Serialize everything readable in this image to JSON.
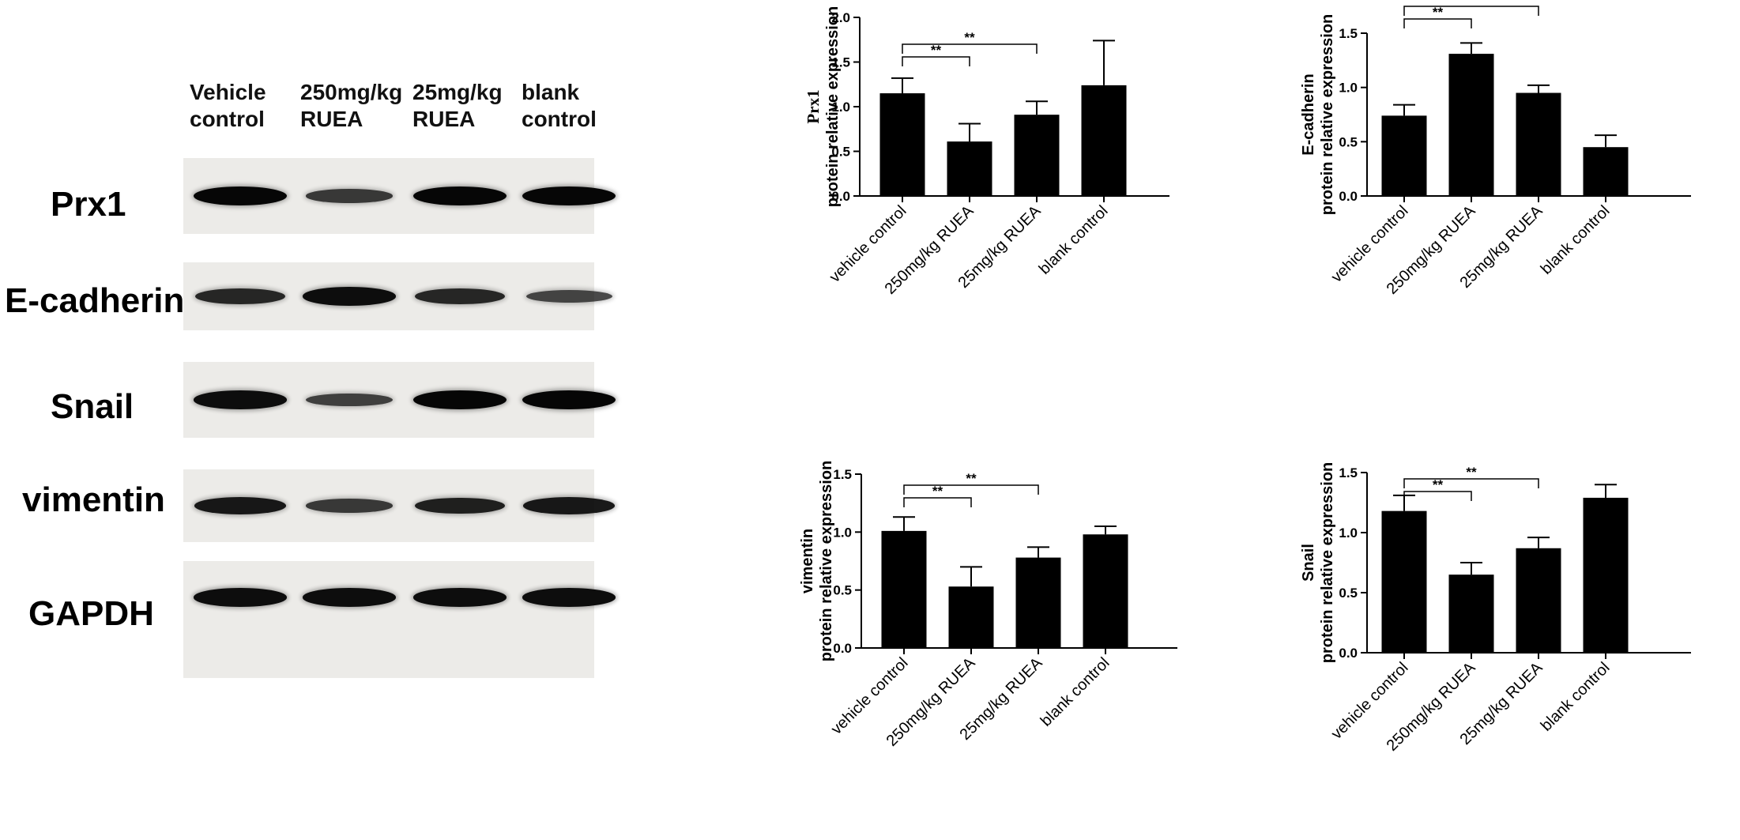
{
  "blot": {
    "lanes": [
      {
        "line1": "Vehicle",
        "line2": "control"
      },
      {
        "line1": "250mg/kg",
        "line2": "RUEA"
      },
      {
        "line1": "25mg/kg",
        "line2": "RUEA"
      },
      {
        "line1": "blank",
        "line2": "control"
      }
    ],
    "proteins": [
      {
        "name": "Prx1",
        "band_intensity": [
          1.0,
          0.6,
          1.0,
          1.0
        ]
      },
      {
        "name": "E-cadherin",
        "band_intensity": [
          0.75,
          0.95,
          0.75,
          0.5
        ]
      },
      {
        "name": "Snail",
        "band_intensity": [
          0.95,
          0.55,
          1.0,
          1.0
        ]
      },
      {
        "name": "vimentin",
        "band_intensity": [
          0.85,
          0.6,
          0.8,
          0.85
        ]
      },
      {
        "name": "GAPDH",
        "band_intensity": [
          0.95,
          0.95,
          0.95,
          0.95
        ]
      }
    ]
  },
  "chart_data": [
    {
      "type": "bar",
      "ylabel_line1": "Prx1",
      "ylabel_line2": "protein relative expression",
      "categories": [
        "vehicle control",
        "250mg/kg RUEA",
        "25mg/kg RUEA",
        "blank control"
      ],
      "values": [
        1.15,
        0.61,
        0.91,
        1.24
      ],
      "errors": [
        0.17,
        0.2,
        0.15,
        0.5
      ],
      "ylim": [
        0,
        2.0
      ],
      "yticks": [
        "0.0",
        "0.5",
        "1.0",
        "1.5",
        "2.0"
      ],
      "significance": [
        {
          "from": 0,
          "to": 1,
          "label": "**"
        },
        {
          "from": 0,
          "to": 2,
          "label": "**"
        }
      ]
    },
    {
      "type": "bar",
      "ylabel_line1": "E-cadherin",
      "ylabel_line2": "protein relative expression",
      "categories": [
        "vehicle control",
        "250mg/kg RUEA",
        "25mg/kg RUEA",
        "blank control"
      ],
      "values": [
        0.74,
        1.31,
        0.95,
        0.45
      ],
      "errors": [
        0.1,
        0.1,
        0.07,
        0.11
      ],
      "ylim": [
        0,
        1.5
      ],
      "yticks": [
        "0.0",
        "0.5",
        "1.0",
        "1.5"
      ],
      "significance": [
        {
          "from": 0,
          "to": 1,
          "label": "**"
        },
        {
          "from": 0,
          "to": 2,
          "label": "**"
        }
      ]
    },
    {
      "type": "bar",
      "ylabel_line1": "vimentin",
      "ylabel_line2": "protein relative expression",
      "categories": [
        "vehicle control",
        "250mg/kg RUEA",
        "25mg/kg RUEA",
        "blank control"
      ],
      "values": [
        1.01,
        0.53,
        0.78,
        0.98
      ],
      "errors": [
        0.12,
        0.17,
        0.09,
        0.07
      ],
      "ylim": [
        0,
        1.5
      ],
      "yticks": [
        "0.0",
        "0.5",
        "1.0",
        "1.5"
      ],
      "significance": [
        {
          "from": 0,
          "to": 1,
          "label": "**"
        },
        {
          "from": 0,
          "to": 2,
          "label": "**"
        }
      ]
    },
    {
      "type": "bar",
      "ylabel_line1": "Snail",
      "ylabel_line2": "protein relative expression",
      "categories": [
        "vehicle control",
        "250mg/kg RUEA",
        "25mg/kg RUEA",
        "blank control"
      ],
      "values": [
        1.18,
        0.65,
        0.87,
        1.29
      ],
      "errors": [
        0.13,
        0.1,
        0.09,
        0.11
      ],
      "ylim": [
        0,
        1.5
      ],
      "yticks": [
        "0.0",
        "0.5",
        "1.0",
        "1.5"
      ],
      "significance": [
        {
          "from": 0,
          "to": 1,
          "label": "**"
        },
        {
          "from": 0,
          "to": 2,
          "label": "**"
        }
      ]
    }
  ]
}
